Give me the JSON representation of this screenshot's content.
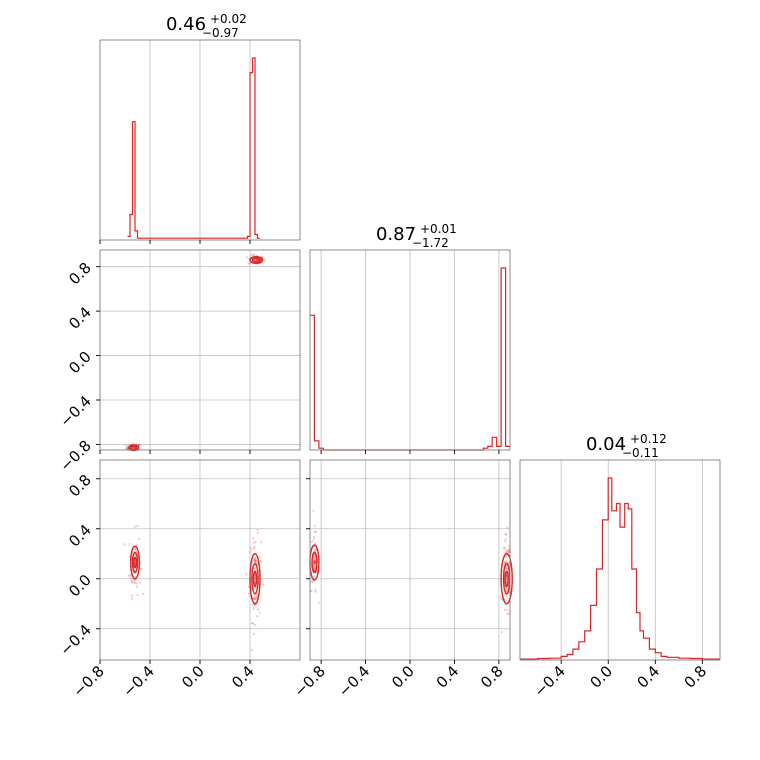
{
  "chart_data": {
    "type": "corner",
    "accent_color": "#d62728",
    "grid": true,
    "panels": [
      {
        "id": "hist-1",
        "kind": "hist",
        "param": 1,
        "xlim": [
          -0.8,
          0.8
        ],
        "ticks": [
          -0.8,
          -0.4,
          0.0,
          0.4
        ],
        "tick_labels": [
          "−0.8",
          "−0.4",
          "0.0",
          "0.4"
        ],
        "title": {
          "value": "0.46",
          "plus": "+0.02",
          "minus": "−0.97"
        }
      },
      {
        "id": "hist-2",
        "kind": "hist",
        "param": 2,
        "xlim": [
          -0.9,
          0.9
        ],
        "ticks": [
          -0.8,
          -0.4,
          0.0,
          0.4,
          0.8
        ],
        "tick_labels": [
          "−0.8",
          "−0.4",
          "0.0",
          "0.4",
          "0.8"
        ],
        "title": {
          "value": "0.87",
          "plus": "+0.01",
          "minus": "−1.72"
        }
      },
      {
        "id": "hist-3",
        "kind": "hist",
        "param": 3,
        "xlim": [
          -0.75,
          0.95
        ],
        "ticks": [
          -0.4,
          0.0,
          0.4,
          0.8
        ],
        "tick_labels": [
          "−0.4",
          "0.0",
          "0.4",
          "0.8"
        ],
        "title": {
          "value": "0.04",
          "plus": "+0.12",
          "minus": "−0.11"
        }
      },
      {
        "id": "scatter-2-1",
        "kind": "scatter",
        "xparam": 1,
        "yparam": 2,
        "xlim": [
          -0.8,
          0.8
        ],
        "ylim": [
          -0.85,
          0.95
        ],
        "yticks": [
          -0.8,
          -0.4,
          0.0,
          0.4,
          0.8
        ],
        "ytick_labels": [
          "−0.8",
          "−0.4",
          "0.0",
          "0.4",
          "0.8"
        ]
      },
      {
        "id": "scatter-3-1",
        "kind": "scatter",
        "xparam": 1,
        "yparam": 3,
        "xlim": [
          -0.8,
          0.8
        ],
        "ylim": [
          -0.65,
          0.95
        ],
        "yticks": [
          -0.4,
          0.0,
          0.4,
          0.8
        ],
        "ytick_labels": [
          "−0.4",
          "0.0",
          "0.4",
          "0.8"
        ]
      },
      {
        "id": "scatter-3-2",
        "kind": "scatter",
        "xparam": 2,
        "yparam": 3,
        "xlim": [
          -0.9,
          0.9
        ],
        "ylim": [
          -0.65,
          0.95
        ]
      }
    ],
    "histograms": {
      "1": {
        "bins": [
          [
            -0.58,
            -0.56,
            0.02
          ],
          [
            -0.56,
            -0.54,
            0.14
          ],
          [
            -0.54,
            -0.52,
            0.65
          ],
          [
            -0.52,
            -0.5,
            0.05
          ],
          [
            -0.5,
            -0.48,
            0.01
          ],
          [
            0.36,
            0.38,
            0.01
          ],
          [
            0.38,
            0.4,
            0.02
          ],
          [
            0.4,
            0.42,
            0.92
          ],
          [
            0.42,
            0.44,
            1.0
          ],
          [
            0.44,
            0.46,
            0.03
          ],
          [
            0.46,
            0.48,
            0.01
          ]
        ]
      },
      "2": {
        "bins": [
          [
            -0.9,
            -0.86,
            0.74
          ],
          [
            -0.86,
            -0.82,
            0.05
          ],
          [
            -0.82,
            -0.78,
            0.01
          ],
          [
            -0.78,
            0.66,
            0.0
          ],
          [
            0.66,
            0.7,
            0.01
          ],
          [
            0.7,
            0.74,
            0.02
          ],
          [
            0.74,
            0.78,
            0.07
          ],
          [
            0.78,
            0.82,
            0.02
          ],
          [
            0.82,
            0.86,
            1.0
          ],
          [
            0.86,
            0.9,
            0.02
          ]
        ]
      },
      "3": {
        "bins": [
          [
            -0.75,
            -0.6,
            0.005
          ],
          [
            -0.6,
            -0.5,
            0.008
          ],
          [
            -0.5,
            -0.4,
            0.01
          ],
          [
            -0.4,
            -0.35,
            0.02
          ],
          [
            -0.35,
            -0.3,
            0.03
          ],
          [
            -0.3,
            -0.25,
            0.06
          ],
          [
            -0.25,
            -0.2,
            0.1
          ],
          [
            -0.2,
            -0.15,
            0.16
          ],
          [
            -0.15,
            -0.1,
            0.3
          ],
          [
            -0.1,
            -0.05,
            0.5
          ],
          [
            -0.05,
            0.0,
            0.77
          ],
          [
            0.0,
            0.03,
            1.0
          ],
          [
            0.03,
            0.07,
            0.82
          ],
          [
            0.07,
            0.1,
            0.86
          ],
          [
            0.1,
            0.14,
            0.73
          ],
          [
            0.14,
            0.17,
            0.86
          ],
          [
            0.17,
            0.2,
            0.83
          ],
          [
            0.2,
            0.24,
            0.5
          ],
          [
            0.24,
            0.27,
            0.26
          ],
          [
            0.27,
            0.3,
            0.16
          ],
          [
            0.3,
            0.35,
            0.12
          ],
          [
            0.35,
            0.4,
            0.06
          ],
          [
            0.4,
            0.45,
            0.04
          ],
          [
            0.45,
            0.5,
            0.02
          ],
          [
            0.5,
            0.6,
            0.015
          ],
          [
            0.6,
            0.7,
            0.01
          ],
          [
            0.7,
            0.8,
            0.008
          ],
          [
            0.8,
            0.95,
            0.005
          ]
        ]
      }
    },
    "clusters": {
      "scatter-2-1": [
        {
          "cx": -0.53,
          "cy": -0.83,
          "sx": 0.018,
          "sy": 0.012,
          "n": 60,
          "contours": [
            {
              "rx": 0.04,
              "ry": 0.025
            },
            {
              "rx": 0.025,
              "ry": 0.015
            }
          ]
        },
        {
          "cx": 0.45,
          "cy": 0.86,
          "sx": 0.02,
          "sy": 0.015,
          "n": 80,
          "contours": [
            {
              "rx": 0.05,
              "ry": 0.03
            },
            {
              "rx": 0.03,
              "ry": 0.018
            }
          ]
        }
      ],
      "scatter-3-1": [
        {
          "cx": -0.52,
          "cy": 0.13,
          "sx": 0.015,
          "sy": 0.09,
          "n": 70,
          "contours": [
            {
              "rx": 0.035,
              "ry": 0.13
            },
            {
              "rx": 0.02,
              "ry": 0.08
            },
            {
              "rx": 0.01,
              "ry": 0.04
            }
          ]
        },
        {
          "cx": 0.44,
          "cy": 0.0,
          "sx": 0.015,
          "sy": 0.12,
          "n": 90,
          "contours": [
            {
              "rx": 0.04,
              "ry": 0.2
            },
            {
              "rx": 0.025,
              "ry": 0.12
            },
            {
              "rx": 0.012,
              "ry": 0.06
            }
          ]
        }
      ],
      "scatter-3-2": [
        {
          "cx": -0.86,
          "cy": 0.13,
          "sx": 0.012,
          "sy": 0.09,
          "n": 70,
          "contours": [
            {
              "rx": 0.04,
              "ry": 0.14
            },
            {
              "rx": 0.022,
              "ry": 0.08
            }
          ]
        },
        {
          "cx": 0.87,
          "cy": 0.0,
          "sx": 0.012,
          "sy": 0.12,
          "n": 90,
          "contours": [
            {
              "rx": 0.05,
              "ry": 0.2
            },
            {
              "rx": 0.028,
              "ry": 0.12
            },
            {
              "rx": 0.014,
              "ry": 0.06
            }
          ]
        }
      ]
    }
  }
}
